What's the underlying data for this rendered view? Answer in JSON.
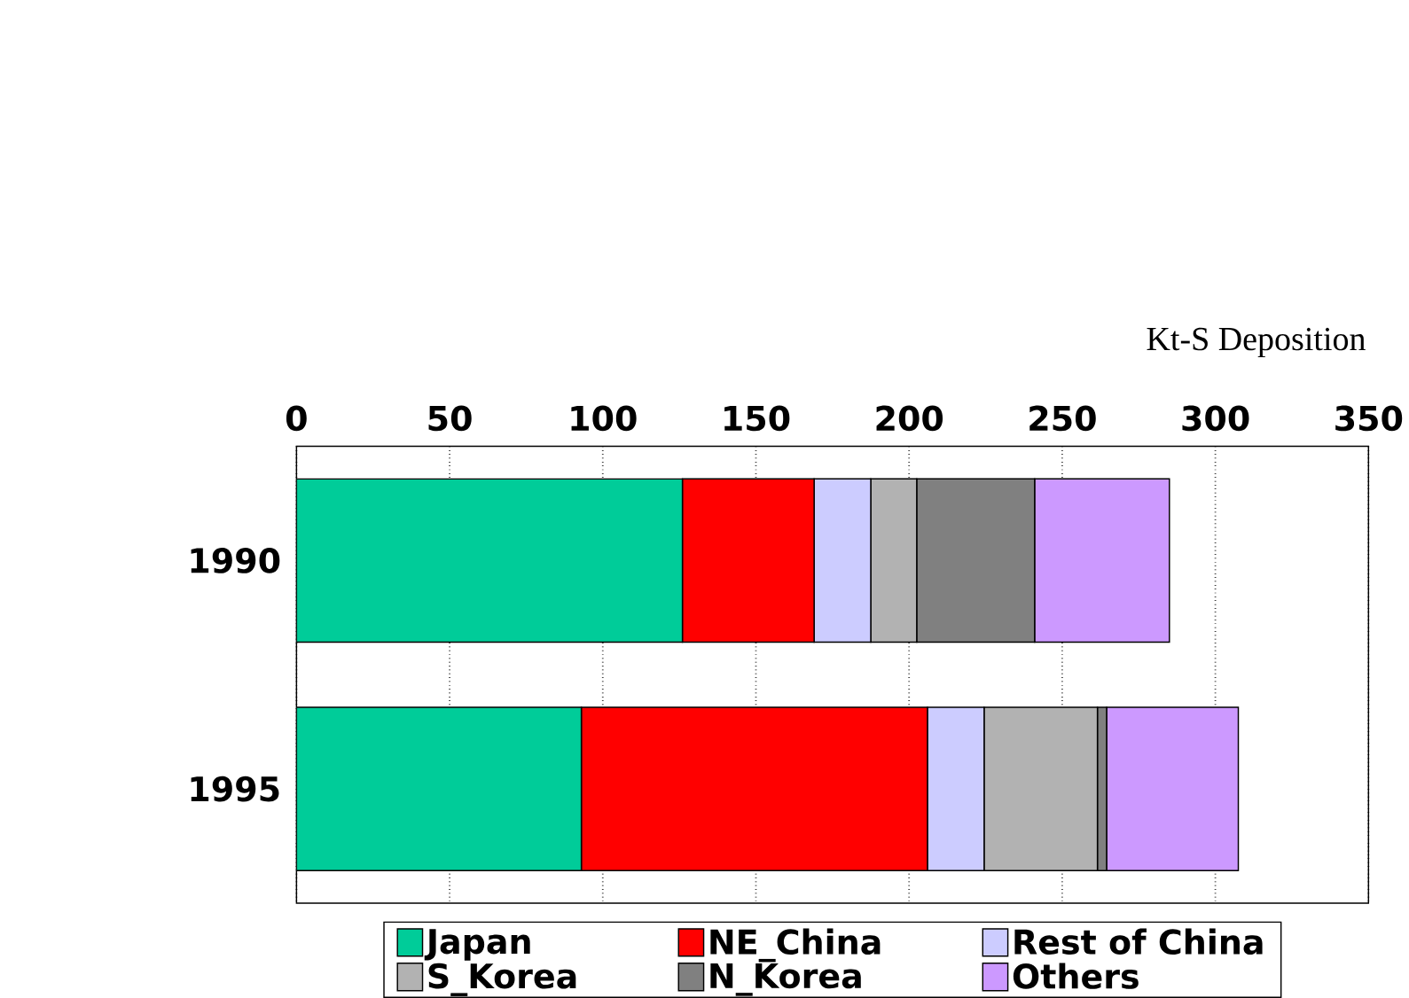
{
  "chart_data": {
    "type": "bar",
    "orientation": "horizontal",
    "stacked": true,
    "xlabel": "Kt-S Deposition",
    "categories": [
      "1990",
      "1995"
    ],
    "series": [
      {
        "name": "Japan",
        "color": "#00cc99",
        "values": [
          126,
          93
        ]
      },
      {
        "name": "NE_China",
        "color": "#ff0000",
        "values": [
          43,
          113
        ]
      },
      {
        "name": "Rest of China",
        "color": "#ccccff",
        "values": [
          18.5,
          18.5
        ]
      },
      {
        "name": "S_Korea",
        "color": "#b2b2b2",
        "values": [
          15,
          37
        ]
      },
      {
        "name": "N_Korea",
        "color": "#808080",
        "values": [
          38.5,
          3
        ]
      },
      {
        "name": "Others",
        "color": "#cc99ff",
        "values": [
          44,
          43
        ]
      }
    ],
    "xlim": [
      0,
      350
    ],
    "xticks": [
      0,
      50,
      100,
      150,
      200,
      250,
      300,
      350
    ],
    "grid": "x",
    "legend": "bottom"
  }
}
